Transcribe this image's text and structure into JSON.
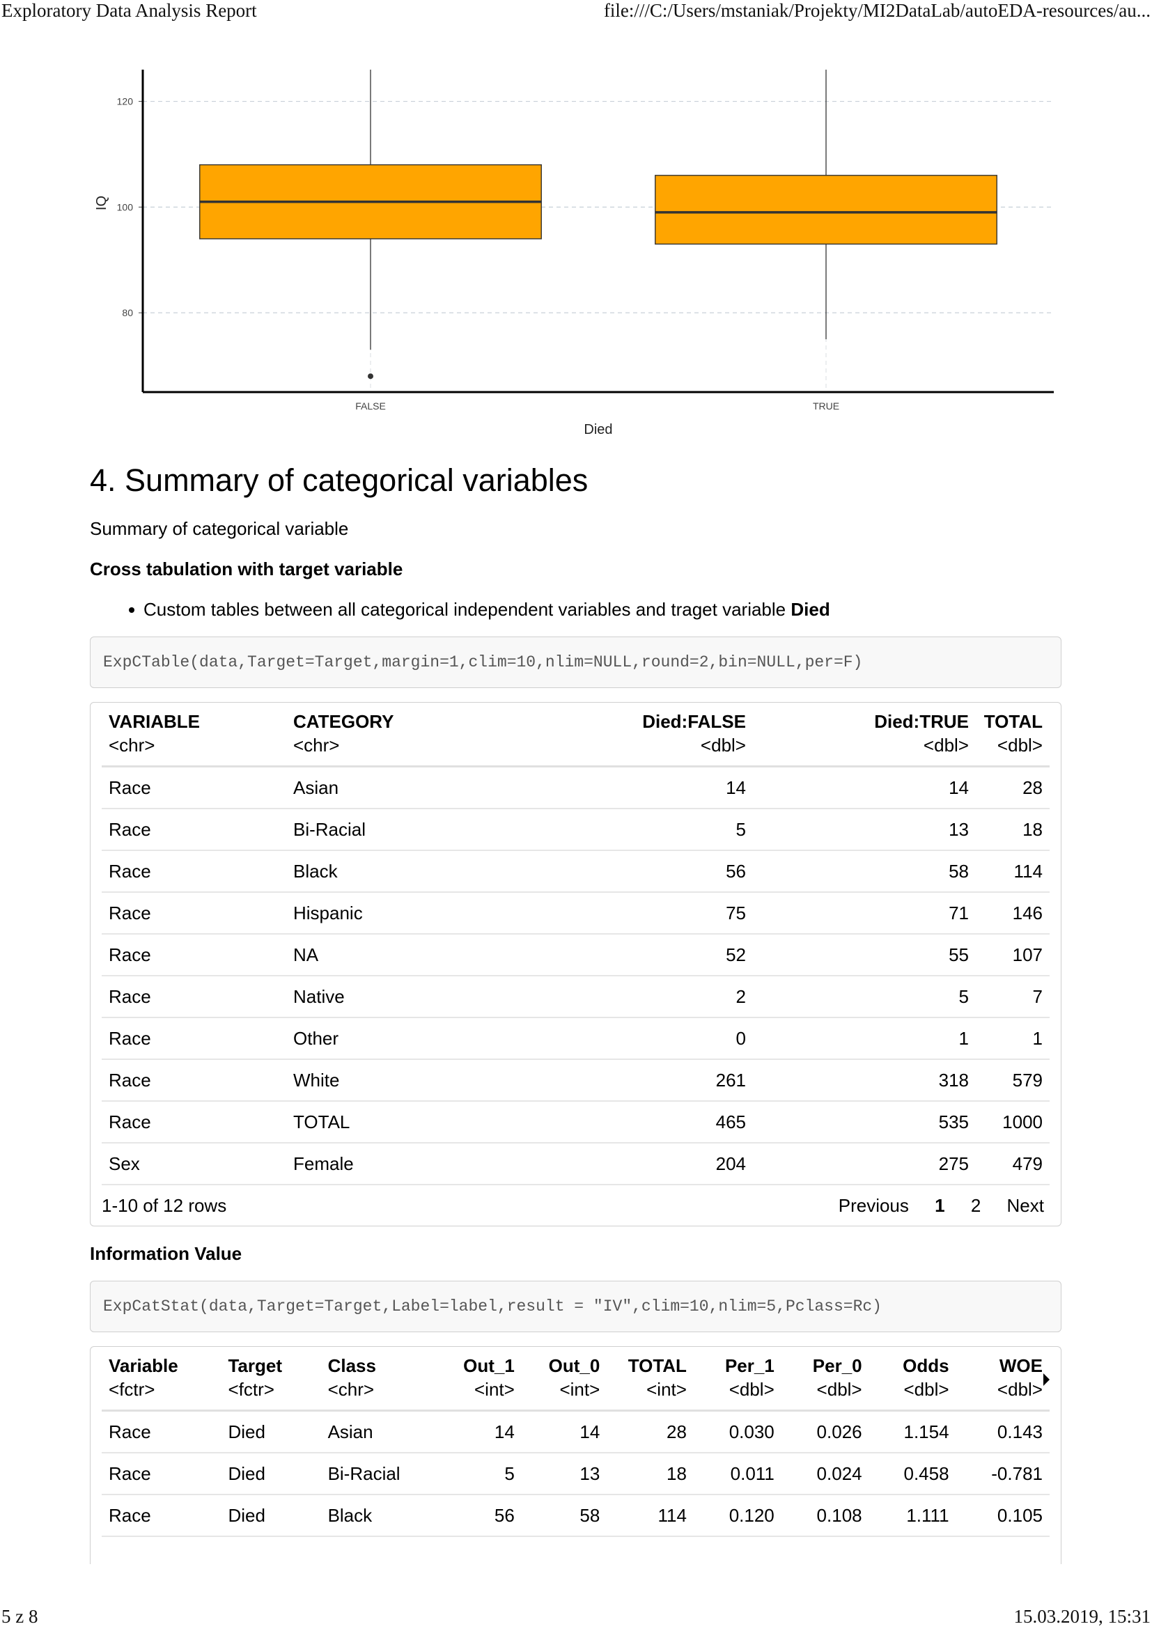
{
  "print_header": {
    "title": "Exploratory Data Analysis Report",
    "url": "file:///C:/Users/mstaniak/Projekty/MI2DataLab/autoEDA-resources/au..."
  },
  "print_footer": {
    "page": "5 z 8",
    "datetime": "15.03.2019, 15:31"
  },
  "chart_data": {
    "type": "box",
    "xlabel": "Died",
    "ylabel": "IQ",
    "categories": [
      "FALSE",
      "TRUE"
    ],
    "ylim": [
      65,
      126
    ],
    "yticks": [
      80,
      100,
      120
    ],
    "grid": true,
    "fill_color": "#FFA500",
    "boxes": [
      {
        "category": "FALSE",
        "whisker_low": 73,
        "q1": 94,
        "median": 101,
        "q3": 108,
        "whisker_high": 126,
        "outliers": [
          68
        ]
      },
      {
        "category": "TRUE",
        "whisker_low": 75,
        "q1": 93,
        "median": 99,
        "q3": 106,
        "whisker_high": 126,
        "outliers": []
      }
    ]
  },
  "section": {
    "title": "4. Summary of categorical variables",
    "intro": "Summary of categorical variable",
    "crosstab_heading": "Cross tabulation with target variable",
    "bullet_text": "Custom tables between all categorical independent variables and traget variable ",
    "bullet_bold": "Died",
    "code1": "ExpCTable(data,Target=Target,margin=1,clim=10,nlim=NULL,round=2,bin=NULL,per=F)",
    "iv_heading": "Information Value",
    "code2": "ExpCatStat(data,Target=Target,Label=label,result = \"IV\",clim=10,nlim=5,Pclass=Rc)"
  },
  "crosstab": {
    "columns": [
      "VARIABLE",
      "CATEGORY",
      "Died:FALSE",
      "Died:TRUE",
      "TOTAL"
    ],
    "types": [
      "<chr>",
      "<chr>",
      "<dbl>",
      "<dbl>",
      "<dbl>"
    ],
    "rows": [
      [
        "Race",
        "Asian",
        "14",
        "14",
        "28"
      ],
      [
        "Race",
        "Bi-Racial",
        "5",
        "13",
        "18"
      ],
      [
        "Race",
        "Black",
        "56",
        "58",
        "114"
      ],
      [
        "Race",
        "Hispanic",
        "75",
        "71",
        "146"
      ],
      [
        "Race",
        "NA",
        "52",
        "55",
        "107"
      ],
      [
        "Race",
        "Native",
        "2",
        "5",
        "7"
      ],
      [
        "Race",
        "Other",
        "0",
        "1",
        "1"
      ],
      [
        "Race",
        "White",
        "261",
        "318",
        "579"
      ],
      [
        "Race",
        "TOTAL",
        "465",
        "535",
        "1000"
      ],
      [
        "Sex",
        "Female",
        "204",
        "275",
        "479"
      ]
    ],
    "pager": {
      "info": "1-10 of 12 rows",
      "prev": "Previous",
      "page1": "1",
      "page2": "2",
      "next": "Next"
    }
  },
  "ivtable": {
    "columns": [
      "Variable",
      "Target",
      "Class",
      "Out_1",
      "Out_0",
      "TOTAL",
      "Per_1",
      "Per_0",
      "Odds",
      "WOE"
    ],
    "types": [
      "<fctr>",
      "<fctr>",
      "<chr>",
      "<int>",
      "<int>",
      "<int>",
      "<dbl>",
      "<dbl>",
      "<dbl>",
      "<dbl>"
    ],
    "rows": [
      [
        "Race",
        "Died",
        "Asian",
        "14",
        "14",
        "28",
        "0.030",
        "0.026",
        "1.154",
        "0.143"
      ],
      [
        "Race",
        "Died",
        "Bi-Racial",
        "5",
        "13",
        "18",
        "0.011",
        "0.024",
        "0.458",
        "-0.781"
      ],
      [
        "Race",
        "Died",
        "Black",
        "56",
        "58",
        "114",
        "0.120",
        "0.108",
        "1.111",
        "0.105"
      ]
    ]
  }
}
